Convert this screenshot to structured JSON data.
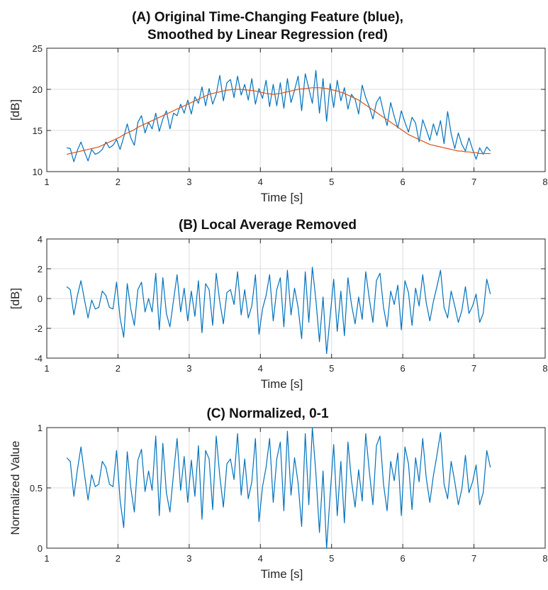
{
  "chart_data": [
    {
      "type": "line",
      "title_lines": [
        "(A) Original Time-Changing Feature (blue),",
        "Smoothed by Linear Regression (red)"
      ],
      "xlabel": "Time [s]",
      "ylabel": "[dB]",
      "xlim": [
        1,
        8
      ],
      "ylim": [
        10,
        25
      ],
      "xticks": [
        1,
        2,
        3,
        4,
        5,
        6,
        7,
        8
      ],
      "yticks": [
        10,
        15,
        20,
        25
      ],
      "grid": true,
      "series": [
        {
          "color": "#0072BD",
          "x": [
            1.28,
            1.33,
            1.38,
            1.43,
            1.48,
            1.53,
            1.58,
            1.63,
            1.68,
            1.73,
            1.78,
            1.83,
            1.88,
            1.93,
            1.98,
            2.03,
            2.08,
            2.13,
            2.18,
            2.23,
            2.28,
            2.33,
            2.38,
            2.43,
            2.48,
            2.53,
            2.58,
            2.63,
            2.68,
            2.73,
            2.78,
            2.83,
            2.88,
            2.93,
            2.98,
            3.03,
            3.08,
            3.13,
            3.18,
            3.23,
            3.28,
            3.33,
            3.38,
            3.43,
            3.48,
            3.53,
            3.58,
            3.63,
            3.68,
            3.73,
            3.78,
            3.83,
            3.88,
            3.93,
            3.98,
            4.03,
            4.08,
            4.13,
            4.18,
            4.23,
            4.28,
            4.33,
            4.38,
            4.43,
            4.48,
            4.53,
            4.58,
            4.63,
            4.68,
            4.73,
            4.78,
            4.83,
            4.88,
            4.93,
            4.98,
            5.03,
            5.08,
            5.13,
            5.18,
            5.23,
            5.28,
            5.33,
            5.38,
            5.43,
            5.48,
            5.53,
            5.58,
            5.63,
            5.68,
            5.73,
            5.78,
            5.83,
            5.88,
            5.93,
            5.98,
            6.03,
            6.08,
            6.13,
            6.18,
            6.23,
            6.28,
            6.33,
            6.38,
            6.43,
            6.48,
            6.53,
            6.58,
            6.63,
            6.68,
            6.73,
            6.78,
            6.83,
            6.88,
            6.93,
            6.98,
            7.03,
            7.08,
            7.13,
            7.18,
            7.23
          ],
          "y": [
            12.9,
            12.8,
            11.2,
            12.6,
            13.6,
            12.4,
            11.3,
            12.7,
            12.1,
            12.3,
            12.7,
            13.6,
            12.9,
            13.2,
            13.9,
            12.7,
            14.2,
            15.8,
            14.1,
            13.2,
            16.0,
            16.8,
            14.7,
            16.0,
            15.2,
            17.1,
            14.9,
            16.4,
            17.4,
            15.2,
            17.1,
            16.8,
            18.2,
            17.1,
            18.7,
            17.0,
            19.1,
            18.3,
            20.3,
            18.0,
            20.1,
            18.2,
            19.4,
            21.7,
            18.6,
            20.8,
            21.2,
            19.0,
            21.6,
            19.3,
            20.6,
            18.7,
            21.3,
            18.2,
            20.1,
            18.9,
            21.1,
            17.9,
            20.6,
            18.0,
            20.8,
            17.7,
            21.3,
            18.4,
            19.9,
            21.6,
            17.4,
            21.9,
            20.1,
            18.3,
            22.3,
            17.1,
            21.3,
            16.1,
            20.7,
            17.8,
            21.1,
            18.6,
            20.2,
            17.6,
            19.4,
            18.8,
            17.0,
            20.5,
            19.0,
            17.9,
            16.4,
            18.4,
            19.1,
            17.2,
            15.6,
            18.4,
            16.7,
            15.3,
            17.4,
            16.0,
            14.8,
            16.6,
            15.9,
            13.6,
            16.3,
            15.1,
            13.8,
            15.8,
            14.4,
            16.2,
            13.4,
            17.3,
            14.6,
            12.8,
            14.7,
            13.3,
            12.5,
            14.1,
            12.7,
            11.5,
            12.9,
            12.1,
            13.0,
            12.5
          ]
        },
        {
          "color": "#D95319",
          "x": [
            1.28,
            1.33,
            1.38,
            1.43,
            1.48,
            1.53,
            1.58,
            1.63,
            1.68,
            1.73,
            1.78,
            1.83,
            1.88,
            1.93,
            1.98,
            2.03,
            2.08,
            2.13,
            2.18,
            2.23,
            2.28,
            2.33,
            2.38,
            2.43,
            2.48,
            2.53,
            2.58,
            2.63,
            2.68,
            2.73,
            2.78,
            2.83,
            2.88,
            2.93,
            2.98,
            3.03,
            3.08,
            3.13,
            3.18,
            3.23,
            3.28,
            3.33,
            3.38,
            3.43,
            3.48,
            3.53,
            3.58,
            3.63,
            3.68,
            3.73,
            3.78,
            3.83,
            3.88,
            3.93,
            3.98,
            4.03,
            4.08,
            4.13,
            4.18,
            4.23,
            4.28,
            4.33,
            4.38,
            4.43,
            4.48,
            4.53,
            4.58,
            4.63,
            4.68,
            4.73,
            4.78,
            4.83,
            4.88,
            4.93,
            4.98,
            5.03,
            5.08,
            5.13,
            5.18,
            5.23,
            5.28,
            5.33,
            5.38,
            5.43,
            5.48,
            5.53,
            5.58,
            5.63,
            5.68,
            5.73,
            5.78,
            5.83,
            5.88,
            5.93,
            5.98,
            6.03,
            6.08,
            6.13,
            6.18,
            6.23,
            6.28,
            6.33,
            6.38,
            6.43,
            6.48,
            6.53,
            6.58,
            6.63,
            6.68,
            6.73,
            6.78,
            6.83,
            6.88,
            6.93,
            6.98,
            7.03,
            7.08,
            7.13,
            7.18,
            7.23
          ],
          "y": [
            12.1,
            12.2,
            12.3,
            12.4,
            12.5,
            12.6,
            12.7,
            12.8,
            12.9,
            13.0,
            13.2,
            13.4,
            13.6,
            13.8,
            14.0,
            14.2,
            14.5,
            14.7,
            14.9,
            15.1,
            15.4,
            15.6,
            15.8,
            16.0,
            16.2,
            16.4,
            16.6,
            16.8,
            17.0,
            17.2,
            17.4,
            17.6,
            17.8,
            18.0,
            18.2,
            18.4,
            18.6,
            18.8,
            19.0,
            19.2,
            19.4,
            19.5,
            19.6,
            19.7,
            19.8,
            19.9,
            19.95,
            20.0,
            20.0,
            20.0,
            19.95,
            19.9,
            19.85,
            19.8,
            19.7,
            19.6,
            19.5,
            19.45,
            19.4,
            19.45,
            19.5,
            19.6,
            19.7,
            19.8,
            19.9,
            20.0,
            20.05,
            20.1,
            20.15,
            20.2,
            20.2,
            20.2,
            20.15,
            20.1,
            20.0,
            19.9,
            19.8,
            19.65,
            19.5,
            19.3,
            19.1,
            18.9,
            18.7,
            18.4,
            18.1,
            17.8,
            17.5,
            17.2,
            16.9,
            16.6,
            16.3,
            16.0,
            15.7,
            15.4,
            15.1,
            14.8,
            14.5,
            14.3,
            14.1,
            13.9,
            13.7,
            13.5,
            13.3,
            13.2,
            13.1,
            13.0,
            12.9,
            12.8,
            12.7,
            12.6,
            12.5,
            12.5,
            12.4,
            12.4,
            12.3,
            12.3,
            12.2,
            12.2,
            12.2,
            12.2
          ]
        }
      ]
    },
    {
      "type": "line",
      "title_lines": [
        "(B) Local Average Removed"
      ],
      "xlabel": "Time [s]",
      "ylabel": "[dB]",
      "xlim": [
        1,
        8
      ],
      "ylim": [
        -4,
        4
      ],
      "xticks": [
        1,
        2,
        3,
        4,
        5,
        6,
        7,
        8
      ],
      "yticks": [
        -4,
        -2,
        0,
        2,
        4
      ],
      "grid": true,
      "series": [
        {
          "color": "#0072BD",
          "x": [
            1.28,
            1.33,
            1.38,
            1.43,
            1.48,
            1.53,
            1.58,
            1.63,
            1.68,
            1.73,
            1.78,
            1.83,
            1.88,
            1.93,
            1.98,
            2.03,
            2.08,
            2.13,
            2.18,
            2.23,
            2.28,
            2.33,
            2.38,
            2.43,
            2.48,
            2.53,
            2.58,
            2.63,
            2.68,
            2.73,
            2.78,
            2.83,
            2.88,
            2.93,
            2.98,
            3.03,
            3.08,
            3.13,
            3.18,
            3.23,
            3.28,
            3.33,
            3.38,
            3.43,
            3.48,
            3.53,
            3.58,
            3.63,
            3.68,
            3.73,
            3.78,
            3.83,
            3.88,
            3.93,
            3.98,
            4.03,
            4.08,
            4.13,
            4.18,
            4.23,
            4.28,
            4.33,
            4.38,
            4.43,
            4.48,
            4.53,
            4.58,
            4.63,
            4.68,
            4.73,
            4.78,
            4.83,
            4.88,
            4.93,
            4.98,
            5.03,
            5.08,
            5.13,
            5.18,
            5.23,
            5.28,
            5.33,
            5.38,
            5.43,
            5.48,
            5.53,
            5.58,
            5.63,
            5.68,
            5.73,
            5.78,
            5.83,
            5.88,
            5.93,
            5.98,
            6.03,
            6.08,
            6.13,
            6.18,
            6.23,
            6.28,
            6.33,
            6.38,
            6.43,
            6.48,
            6.53,
            6.58,
            6.63,
            6.68,
            6.73,
            6.78,
            6.83,
            6.88,
            6.93,
            6.98,
            7.03,
            7.08,
            7.13,
            7.18,
            7.23
          ],
          "y": [
            0.8,
            0.6,
            -1.1,
            0.2,
            1.2,
            -0.1,
            -1.3,
            -0.1,
            -0.7,
            -0.6,
            0.5,
            0.2,
            -0.6,
            -0.7,
            1.1,
            -1.3,
            -2.6,
            1.0,
            -0.7,
            -1.8,
            0.6,
            1.1,
            -0.9,
            0.0,
            -0.9,
            1.7,
            -2.1,
            1.4,
            -1.0,
            -1.9,
            -0.1,
            1.6,
            -0.9,
            0.7,
            -1.5,
            0.5,
            -1.2,
            1.2,
            -2.3,
            1.0,
            0.6,
            -1.8,
            1.7,
            -0.2,
            -1.7,
            0.4,
            0.6,
            -0.4,
            1.8,
            -1.1,
            0.6,
            -1.3,
            -0.5,
            1.6,
            -2.4,
            -0.7,
            0.2,
            1.6,
            -1.5,
            0.6,
            1.4,
            -1.9,
            1.9,
            -1.1,
            0.7,
            -0.6,
            -2.7,
            1.8,
            -1.6,
            2.1,
            -0.1,
            -2.9,
            0.1,
            -3.7,
            -1.2,
            1.3,
            -2.2,
            0.5,
            -2.5,
            1.4,
            -0.4,
            -1.7,
            0.1,
            -1.4,
            1.8,
            0.0,
            -1.6,
            1.2,
            1.7,
            -0.6,
            -1.9,
            0.5,
            -0.4,
            0.9,
            -2.1,
            1.2,
            0.4,
            -1.8,
            0.7,
            -0.5,
            1.6,
            -0.3,
            -1.5,
            -0.2,
            0.8,
            1.9,
            -0.6,
            -1.3,
            0.5,
            -0.5,
            -1.6,
            -0.8,
            0.8,
            -1.0,
            -0.5,
            0.3,
            -1.6,
            -1.0,
            1.3,
            0.3
          ]
        }
      ]
    },
    {
      "type": "line",
      "title_lines": [
        "(C) Normalized, 0-1"
      ],
      "xlabel": "Time [s]",
      "ylabel": "Normalized Value",
      "xlim": [
        1,
        8
      ],
      "ylim": [
        0,
        1
      ],
      "xticks": [
        1,
        2,
        3,
        4,
        5,
        6,
        7,
        8
      ],
      "yticks": [
        0,
        0.5,
        1
      ],
      "grid": true,
      "series": [
        {
          "color": "#0072BD",
          "x": [
            1.28,
            1.33,
            1.38,
            1.43,
            1.48,
            1.53,
            1.58,
            1.63,
            1.68,
            1.73,
            1.78,
            1.83,
            1.88,
            1.93,
            1.98,
            2.03,
            2.08,
            2.13,
            2.18,
            2.23,
            2.28,
            2.33,
            2.38,
            2.43,
            2.48,
            2.53,
            2.58,
            2.63,
            2.68,
            2.73,
            2.78,
            2.83,
            2.88,
            2.93,
            2.98,
            3.03,
            3.08,
            3.13,
            3.18,
            3.23,
            3.28,
            3.33,
            3.38,
            3.43,
            3.48,
            3.53,
            3.58,
            3.63,
            3.68,
            3.73,
            3.78,
            3.83,
            3.88,
            3.93,
            3.98,
            4.03,
            4.08,
            4.13,
            4.18,
            4.23,
            4.28,
            4.33,
            4.38,
            4.43,
            4.48,
            4.53,
            4.58,
            4.63,
            4.68,
            4.73,
            4.78,
            4.83,
            4.88,
            4.93,
            4.98,
            5.03,
            5.08,
            5.13,
            5.18,
            5.23,
            5.28,
            5.33,
            5.38,
            5.43,
            5.48,
            5.53,
            5.58,
            5.63,
            5.68,
            5.73,
            5.78,
            5.83,
            5.88,
            5.93,
            5.98,
            6.03,
            6.08,
            6.13,
            6.18,
            6.23,
            6.28,
            6.33,
            6.38,
            6.43,
            6.48,
            6.53,
            6.58,
            6.63,
            6.68,
            6.73,
            6.78,
            6.83,
            6.88,
            6.93,
            6.98,
            7.03,
            7.08,
            7.13,
            7.18,
            7.23
          ],
          "y": [
            0.75,
            0.72,
            0.43,
            0.65,
            0.84,
            0.61,
            0.4,
            0.61,
            0.51,
            0.53,
            0.72,
            0.67,
            0.53,
            0.51,
            0.81,
            0.4,
            0.17,
            0.8,
            0.5,
            0.3,
            0.73,
            0.82,
            0.47,
            0.64,
            0.48,
            0.93,
            0.27,
            0.87,
            0.46,
            0.3,
            0.62,
            0.91,
            0.48,
            0.76,
            0.38,
            0.73,
            0.43,
            0.85,
            0.24,
            0.81,
            0.74,
            0.32,
            0.93,
            0.6,
            0.34,
            0.7,
            0.74,
            0.57,
            0.95,
            0.44,
            0.74,
            0.41,
            0.55,
            0.91,
            0.22,
            0.51,
            0.67,
            0.91,
            0.38,
            0.74,
            0.88,
            0.31,
            0.97,
            0.44,
            0.75,
            0.54,
            0.18,
            0.95,
            0.36,
            1.0,
            0.62,
            0.13,
            0.64,
            0.0,
            0.44,
            0.86,
            0.27,
            0.72,
            0.21,
            0.88,
            0.56,
            0.34,
            0.65,
            0.39,
            0.95,
            0.64,
            0.36,
            0.85,
            0.93,
            0.53,
            0.31,
            0.72,
            0.56,
            0.79,
            0.27,
            0.84,
            0.7,
            0.32,
            0.75,
            0.55,
            0.91,
            0.58,
            0.38,
            0.6,
            0.77,
            0.96,
            0.53,
            0.41,
            0.72,
            0.55,
            0.36,
            0.49,
            0.77,
            0.46,
            0.55,
            0.69,
            0.36,
            0.46,
            0.81,
            0.67
          ]
        }
      ]
    }
  ]
}
